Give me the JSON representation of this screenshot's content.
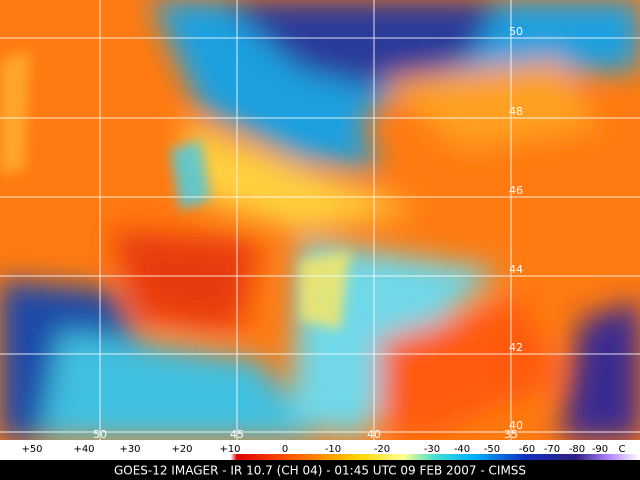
{
  "map": {
    "lat_labels": [
      "50",
      "48",
      "46",
      "44",
      "42",
      "40"
    ],
    "lon_labels": [
      "50",
      "45",
      "40",
      "35"
    ]
  },
  "colorbar": {
    "labels": [
      "+50",
      "+40",
      "+30",
      "+20",
      "+10",
      "0",
      "-10",
      "-20",
      "-30",
      "-40",
      "-50",
      "-60",
      "-70",
      "-80",
      "-90"
    ],
    "unit": "C"
  },
  "caption": "GOES-12 IMAGER - IR 10.7 (CH 04) - 01:45 UTC 09 FEB 2007 - CIMSS"
}
